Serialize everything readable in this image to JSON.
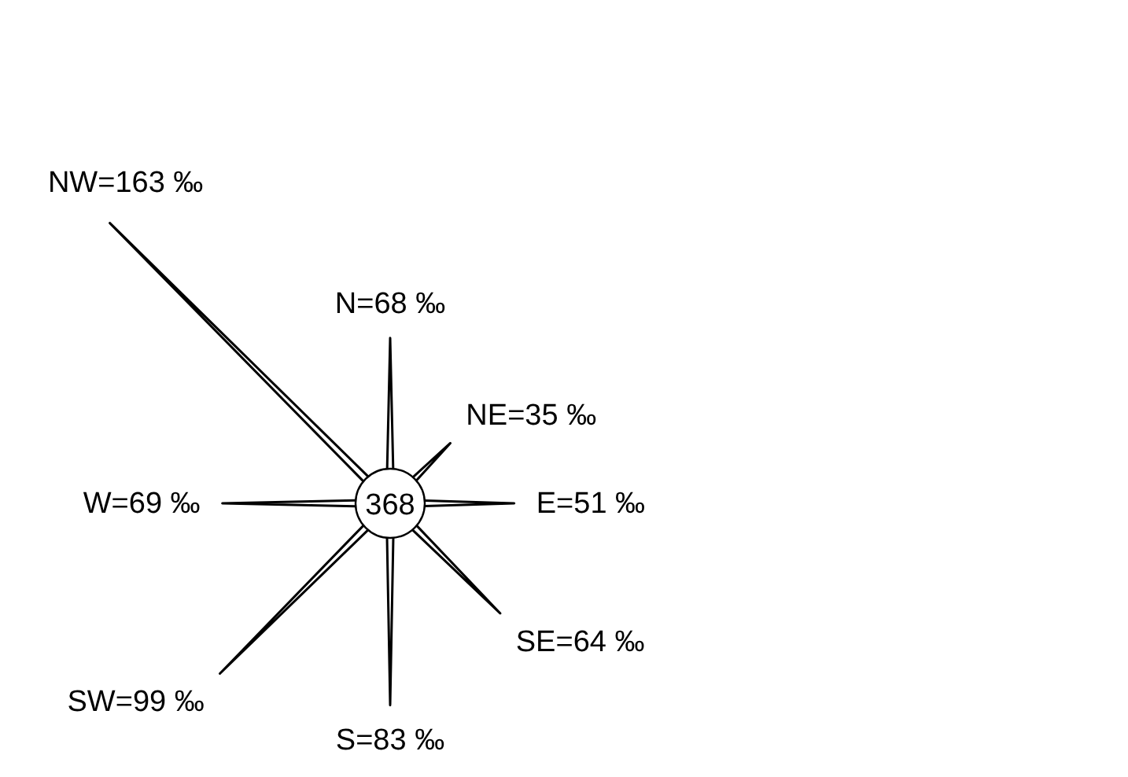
{
  "chart_data": {
    "type": "other",
    "categories": [
      "N",
      "NE",
      "E",
      "SE",
      "S",
      "SW",
      "W",
      "NW"
    ],
    "value_labels": [
      "=68 ‰",
      "=35 ‰",
      "=51 ‰",
      "=64 ‰",
      "=83 ‰",
      "=99 ‰",
      "=69 ‰",
      "=163 ‰"
    ],
    "values": [
      68,
      35,
      51,
      64,
      83,
      99,
      69,
      163
    ],
    "color": "#000000",
    "annotations": [
      "368"
    ]
  }
}
